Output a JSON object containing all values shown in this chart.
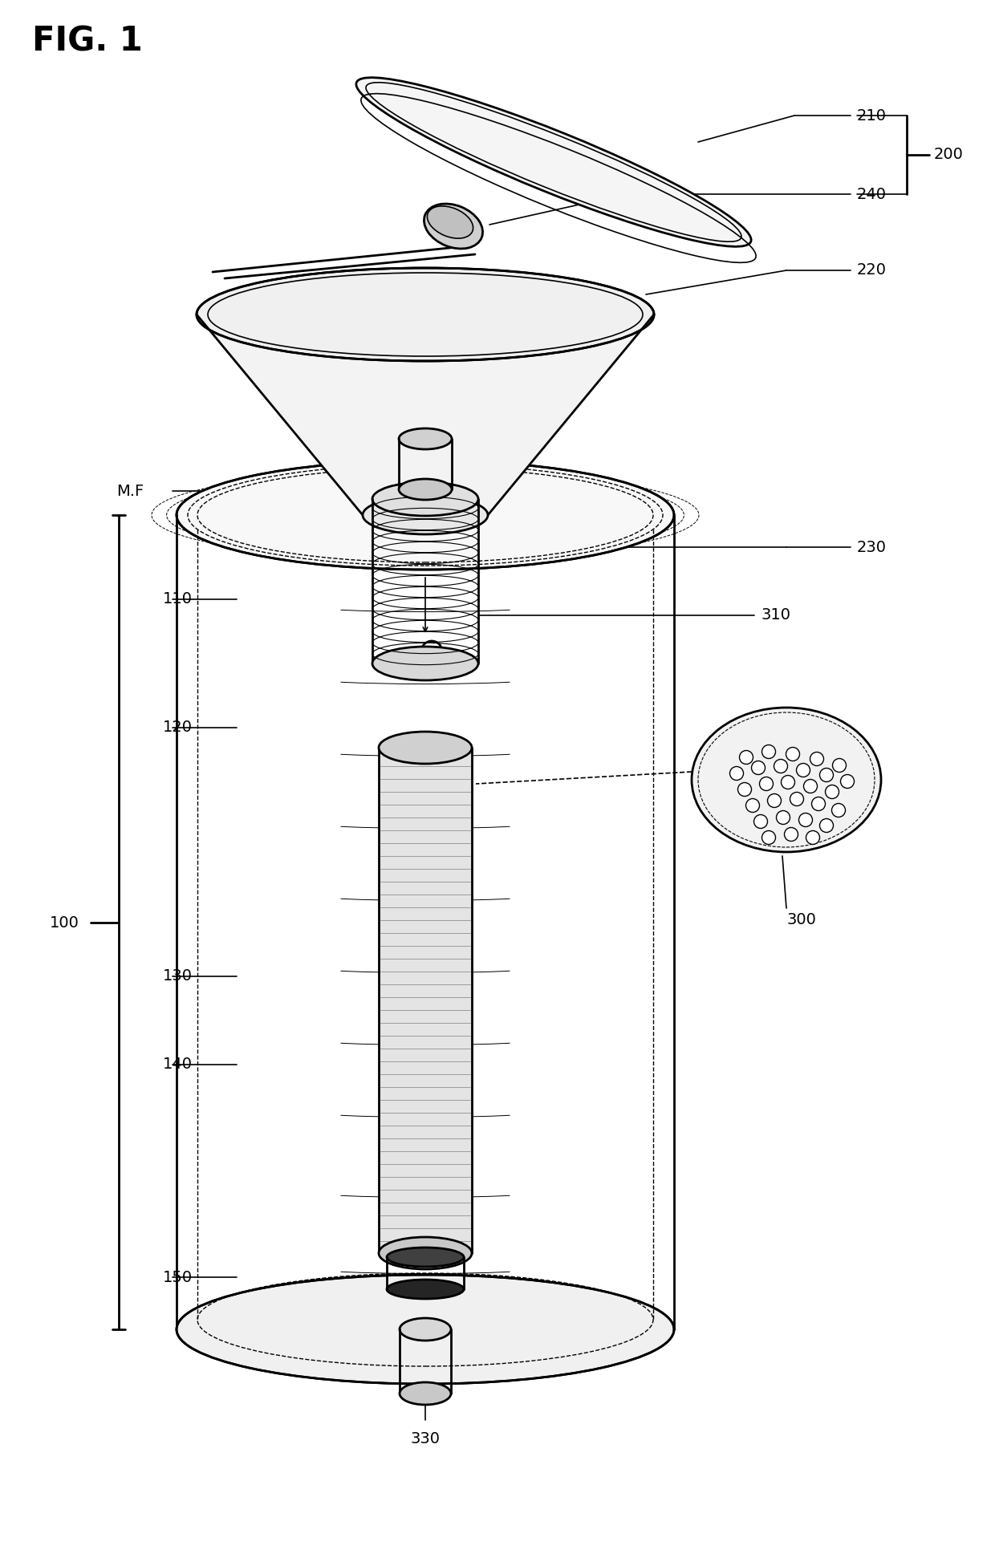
{
  "bg_color": "#ffffff",
  "line_color": "#000000",
  "labels": {
    "fig_title": "FIG. 1",
    "210": "210",
    "240": "240",
    "200": "200",
    "220": "220",
    "230": "230",
    "310": "310",
    "MF": "M.F",
    "110": "110",
    "120": "120",
    "130": "130",
    "140": "140",
    "150": "150",
    "100": "100",
    "300": "300",
    "330": "330"
  },
  "figsize": [
    12.4,
    19.52
  ],
  "dpi": 100
}
